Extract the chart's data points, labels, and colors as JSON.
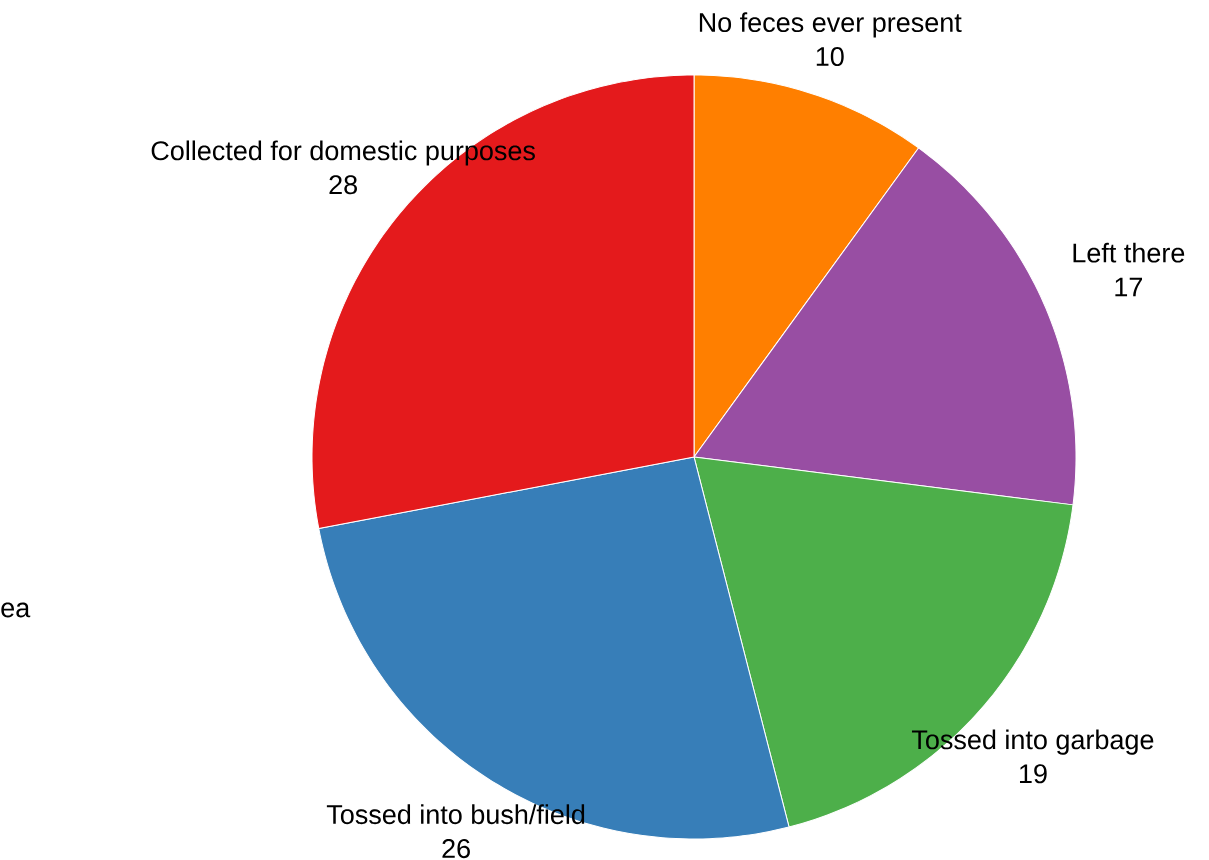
{
  "chart_data": {
    "type": "pie",
    "categories": [
      "No feces ever present",
      "Left there",
      "Tossed into garbage",
      "Tossed into bush/field",
      "Collected for domestic purposes"
    ],
    "values": [
      10,
      17,
      19,
      26,
      28
    ],
    "colors": [
      "#ff7f00",
      "#984ea3",
      "#4daf4a",
      "#377eb8",
      "#e41a1c"
    ],
    "data_labels": true,
    "annotations": [
      "ea"
    ]
  }
}
